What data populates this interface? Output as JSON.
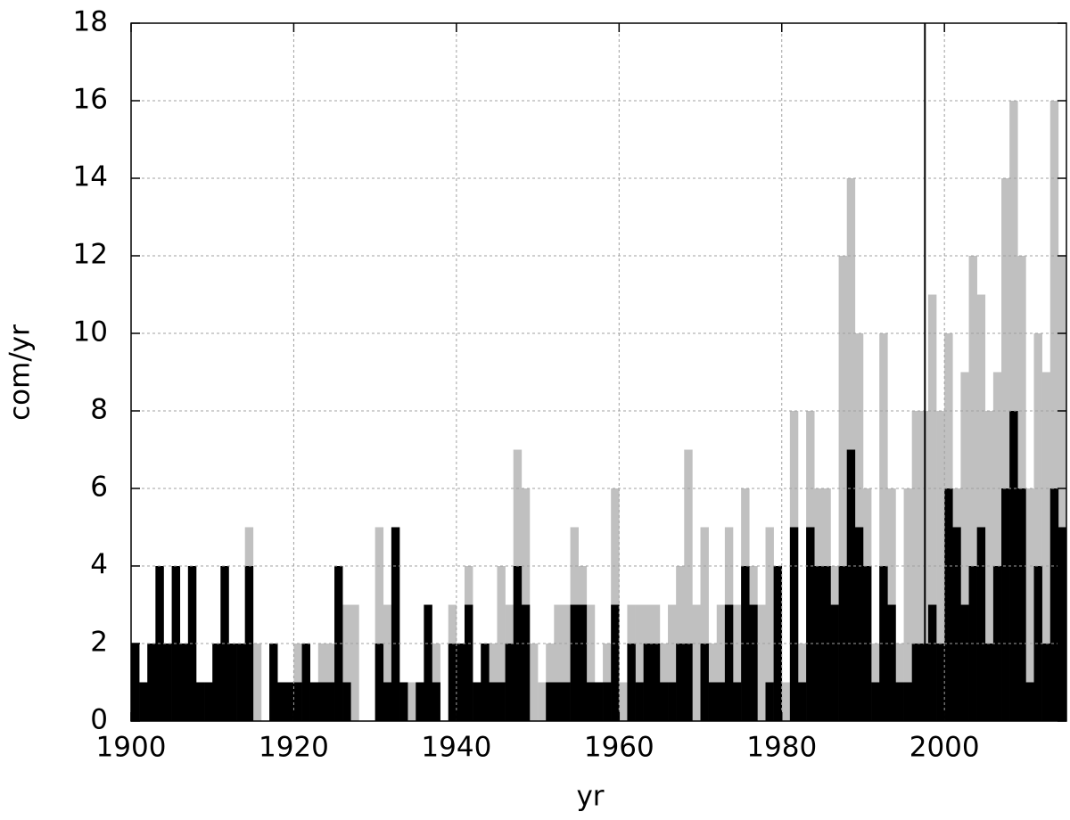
{
  "chart_data": {
    "type": "histogram",
    "xlabel": "yr",
    "ylabel": "com/yr",
    "bins": [
      1900,
      1901,
      1902,
      1903,
      1904,
      1905,
      1906,
      1907,
      1908,
      1909,
      1910,
      1911,
      1912,
      1913,
      1914,
      1915,
      1916,
      1917,
      1918,
      1919,
      1920,
      1921,
      1922,
      1923,
      1924,
      1925,
      1926,
      1927,
      1928,
      1929,
      1930,
      1931,
      1932,
      1933,
      1934,
      1935,
      1936,
      1937,
      1938,
      1939,
      1940,
      1941,
      1942,
      1943,
      1944,
      1945,
      1946,
      1947,
      1948,
      1949,
      1950,
      1951,
      1952,
      1953,
      1954,
      1955,
      1956,
      1957,
      1958,
      1959,
      1960,
      1961,
      1962,
      1963,
      1964,
      1965,
      1966,
      1967,
      1968,
      1969,
      1970,
      1971,
      1972,
      1973,
      1974,
      1975,
      1976,
      1977,
      1978,
      1979,
      1980,
      1981,
      1982,
      1983,
      1984,
      1985,
      1986,
      1987,
      1988,
      1989,
      1990,
      1991,
      1992,
      1993,
      1994,
      1995,
      1996,
      1997,
      1998,
      1999,
      2000,
      2001,
      2002,
      2003,
      2004,
      2005,
      2006,
      2007,
      2008,
      2009,
      2010,
      2011,
      2012,
      2013,
      2014,
      2015
    ],
    "series": [
      {
        "color": "#c0c0c0",
        "values": [
          2,
          1,
          2,
          4,
          2,
          4,
          2,
          4,
          1,
          1,
          2,
          4,
          2,
          2,
          5,
          2,
          0,
          2,
          1,
          1,
          2,
          2,
          1,
          2,
          2,
          4,
          3,
          3,
          0,
          0,
          5,
          3,
          5,
          1,
          1,
          1,
          3,
          2,
          0,
          3,
          2,
          4,
          1,
          2,
          2,
          4,
          3,
          7,
          6,
          2,
          1,
          2,
          3,
          3,
          5,
          4,
          3,
          1,
          2,
          6,
          1,
          3,
          3,
          3,
          3,
          2,
          3,
          4,
          7,
          3,
          5,
          2,
          3,
          5,
          3,
          6,
          4,
          3,
          5,
          4,
          1,
          8,
          2,
          8,
          6,
          6,
          4,
          12,
          14,
          10,
          6,
          2,
          10,
          6,
          2,
          6,
          8,
          8,
          11,
          8,
          10,
          6,
          9,
          12,
          11,
          8,
          9,
          14,
          16,
          12,
          6,
          10,
          9,
          16,
          12
        ]
      },
      {
        "color": "#000000",
        "values": [
          2,
          1,
          2,
          4,
          2,
          4,
          2,
          4,
          1,
          1,
          2,
          4,
          2,
          2,
          4,
          0,
          0,
          2,
          1,
          1,
          1,
          2,
          1,
          1,
          1,
          4,
          1,
          0,
          0,
          0,
          2,
          1,
          5,
          1,
          0,
          1,
          3,
          1,
          0,
          2,
          2,
          3,
          1,
          2,
          1,
          1,
          2,
          4,
          3,
          0,
          0,
          1,
          1,
          1,
          3,
          3,
          1,
          1,
          1,
          3,
          0,
          2,
          1,
          2,
          2,
          1,
          1,
          2,
          2,
          0,
          2,
          1,
          1,
          3,
          1,
          4,
          3,
          0,
          1,
          4,
          0,
          5,
          1,
          5,
          4,
          4,
          3,
          4,
          7,
          5,
          4,
          1,
          4,
          3,
          1,
          1,
          2,
          2,
          3,
          2,
          6,
          5,
          3,
          4,
          5,
          2,
          4,
          6,
          8,
          6,
          1,
          4,
          2,
          6,
          5
        ]
      }
    ],
    "vlines": [
      1997.6
    ],
    "xlim": [
      1900,
      2015
    ],
    "xticks": [
      1900,
      1920,
      1940,
      1960,
      1980,
      2000
    ],
    "ylim": [
      0,
      18
    ],
    "yticks": [
      0,
      2,
      4,
      6,
      8,
      10,
      12,
      14,
      16,
      18
    ],
    "grid": true
  }
}
